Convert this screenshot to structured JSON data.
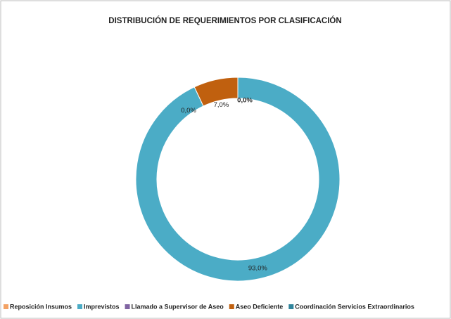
{
  "chart_data": {
    "type": "donut",
    "title": "DISTRIBUCIÓN DE REQUERIMIENTOS POR CLASIFICACIÓN",
    "categories": [
      "Reposición Insumos",
      "Imprevistos",
      "Llamado a Supervisor de Aseo",
      "Aseo Deficiente",
      "Coordinación Servicios Extraordinarios"
    ],
    "values": [
      0,
      93,
      0,
      7,
      0
    ],
    "value_labels": [
      null,
      "93,0%",
      "0,0%",
      "7,0%",
      "0,0%"
    ],
    "colors": [
      "#f3a265",
      "#4bacc6",
      "#8064a2",
      "#c0600f",
      "#31859c"
    ],
    "legend": "bottom"
  }
}
